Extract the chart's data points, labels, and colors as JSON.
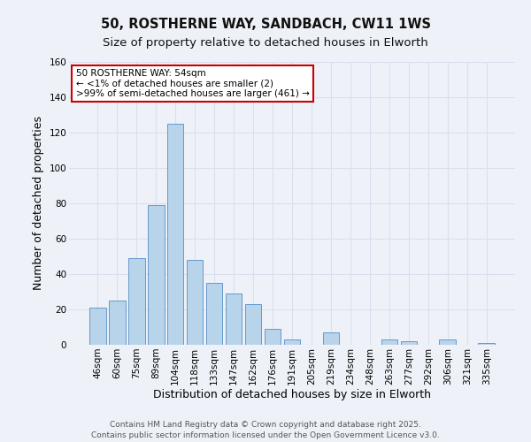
{
  "title_line1": "50, ROSTHERNE WAY, SANDBACH, CW11 1WS",
  "title_line2": "Size of property relative to detached houses in Elworth",
  "xlabel": "Distribution of detached houses by size in Elworth",
  "ylabel": "Number of detached properties",
  "categories": [
    "46sqm",
    "60sqm",
    "75sqm",
    "89sqm",
    "104sqm",
    "118sqm",
    "133sqm",
    "147sqm",
    "162sqm",
    "176sqm",
    "191sqm",
    "205sqm",
    "219sqm",
    "234sqm",
    "248sqm",
    "263sqm",
    "277sqm",
    "292sqm",
    "306sqm",
    "321sqm",
    "335sqm"
  ],
  "values": [
    21,
    25,
    49,
    79,
    125,
    48,
    35,
    29,
    23,
    9,
    3,
    0,
    7,
    0,
    0,
    3,
    2,
    0,
    3,
    0,
    1
  ],
  "bar_color": "#b8d4ea",
  "bar_edge_color": "#6699cc",
  "ylim": [
    0,
    160
  ],
  "yticks": [
    0,
    20,
    40,
    60,
    80,
    100,
    120,
    140,
    160
  ],
  "annotation_box_text_line1": "50 ROSTHERNE WAY: 54sqm",
  "annotation_box_text_line2": "← <1% of detached houses are smaller (2)",
  "annotation_box_text_line3": ">99% of semi-detached houses are larger (461) →",
  "annotation_box_edge_color": "#cc0000",
  "annotation_box_facecolor": "#ffffff",
  "footer_line1": "Contains HM Land Registry data © Crown copyright and database right 2025.",
  "footer_line2": "Contains public sector information licensed under the Open Government Licence v3.0.",
  "bg_color": "#eef2f8",
  "grid_color": "#d8e0ee",
  "title_fontsize": 10.5,
  "subtitle_fontsize": 9.5,
  "axis_label_fontsize": 9,
  "tick_fontsize": 7.5,
  "footer_fontsize": 6.5,
  "ann_fontsize": 7.5
}
